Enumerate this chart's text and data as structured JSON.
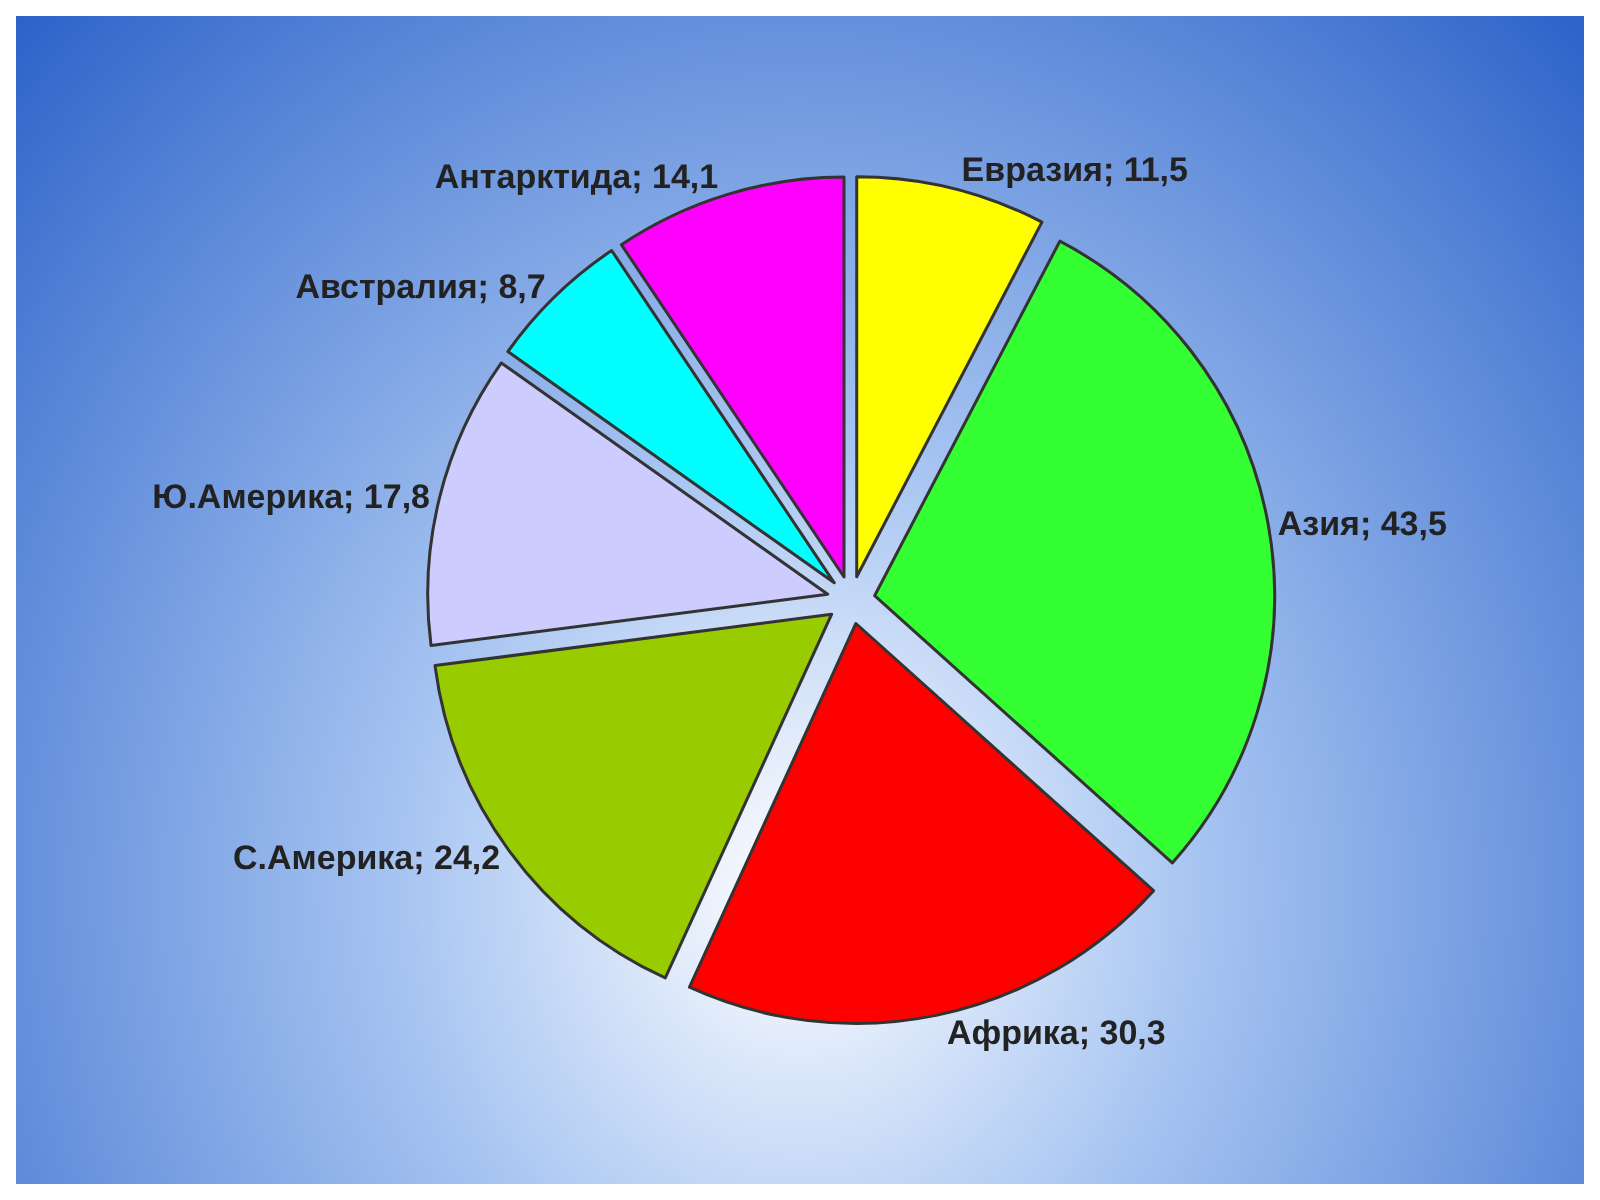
{
  "chart_data": {
    "type": "pie",
    "categories": [
      "Евразия",
      "Азия",
      "Африка",
      "С.Америка",
      "Ю.Америка",
      "Австралия",
      "Антарктида"
    ],
    "values": [
      11.5,
      43.5,
      30.3,
      24.2,
      17.8,
      8.7,
      14.1
    ],
    "value_labels": [
      "11,5",
      "43,5",
      "30,3",
      "24,2",
      "17,8",
      "8,7",
      "14,1"
    ],
    "colors": [
      "#ffff00",
      "#33ff33",
      "#ff0000",
      "#99cc00",
      "#ccccff",
      "#00ffff",
      "#ff00ff"
    ],
    "legend": false
  }
}
